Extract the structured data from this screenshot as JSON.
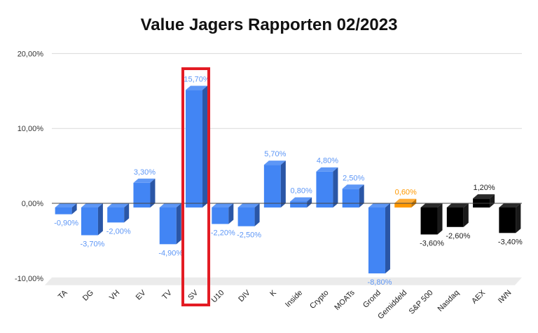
{
  "chart_data": {
    "type": "bar",
    "title": "Value Jagers Rapporten 02/2023",
    "xlabel": "",
    "ylabel": "",
    "ylim": [
      -10,
      20
    ],
    "yticks": [
      "20,00%",
      "10,00%",
      "0,00%",
      "-10,00%"
    ],
    "ytick_values": [
      20,
      10,
      0,
      -10
    ],
    "grid": true,
    "legend": "none",
    "style": "3d-bar",
    "categories": [
      "TA",
      "DG",
      "VH",
      "EV",
      "TV",
      "SV",
      "U10",
      "DIV",
      "K",
      "Inside",
      "Crypto",
      "MOATs",
      "Grond",
      "Gemiddeld",
      "S&P 500",
      "Nasdaq",
      "AEX",
      "IWN"
    ],
    "values": [
      -0.9,
      -3.7,
      -2.0,
      3.3,
      -4.9,
      15.7,
      -2.2,
      -2.5,
      5.7,
      0.8,
      4.8,
      2.5,
      -8.8,
      0.6,
      -3.6,
      -2.6,
      1.2,
      -3.4
    ],
    "labels": [
      "-0,90%",
      "-3,70%",
      "-2,00%",
      "3,30%",
      "-4,90%",
      "15,70%",
      "-2,20%",
      "-2,50%",
      "5,70%",
      "0,80%",
      "4,80%",
      "2,50%",
      "-8,80%",
      "0,60%",
      "-3,60%",
      "-2,60%",
      "1,20%",
      "-3,40%"
    ],
    "bar_groups": [
      "portfolio",
      "portfolio",
      "portfolio",
      "portfolio",
      "portfolio",
      "portfolio",
      "portfolio",
      "portfolio",
      "portfolio",
      "portfolio",
      "portfolio",
      "portfolio",
      "portfolio",
      "average",
      "index",
      "index",
      "index",
      "index"
    ],
    "colors": {
      "portfolio": {
        "front": "#4285f4",
        "top": "#5e97f6",
        "side": "#2a56a6",
        "label": "#5e97f6"
      },
      "average": {
        "front": "#ff9900",
        "top": "#ffab33",
        "side": "#c77700",
        "label": "#ff9900"
      },
      "index": {
        "front": "#000000",
        "top": "#2b2b2b",
        "side": "#1a1a1a",
        "label": "#222222"
      }
    },
    "annotations": [
      {
        "type": "highlight-box",
        "category": "SV",
        "color": "#e31b23"
      }
    ]
  }
}
